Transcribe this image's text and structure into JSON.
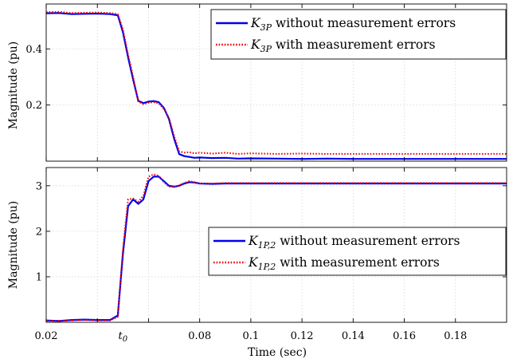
{
  "chart_data": [
    {
      "type": "line",
      "id": "top",
      "ylabel": "Magnitude (pu)",
      "xlim": [
        0.02,
        0.2
      ],
      "ylim": [
        0.0,
        0.56
      ],
      "yticks": [
        0.2,
        0.4
      ],
      "ytick_labels": [
        "0.2",
        "0.4"
      ],
      "grid": true,
      "legend_position": "top-right",
      "series": [
        {
          "name": "K_3P without measurement errors",
          "legend_main": "K",
          "legend_sub": "3P",
          "legend_text": " without measurement errors",
          "color": "#0000ee",
          "style": "solid",
          "x": [
            0.02,
            0.025,
            0.03,
            0.035,
            0.04,
            0.045,
            0.048,
            0.05,
            0.052,
            0.054,
            0.056,
            0.058,
            0.06,
            0.062,
            0.064,
            0.066,
            0.068,
            0.07,
            0.072,
            0.074,
            0.076,
            0.078,
            0.08,
            0.085,
            0.09,
            0.095,
            0.1,
            0.11,
            0.12,
            0.13,
            0.14,
            0.15,
            0.16,
            0.17,
            0.18,
            0.19,
            0.2
          ],
          "y": [
            0.527,
            0.528,
            0.524,
            0.525,
            0.526,
            0.524,
            0.52,
            0.46,
            0.37,
            0.29,
            0.215,
            0.207,
            0.212,
            0.214,
            0.21,
            0.19,
            0.15,
            0.08,
            0.025,
            0.018,
            0.015,
            0.012,
            0.013,
            0.011,
            0.012,
            0.009,
            0.01,
            0.009,
            0.008,
            0.009,
            0.008,
            0.008,
            0.008,
            0.008,
            0.008,
            0.008,
            0.008
          ]
        },
        {
          "name": "K_3P with measurement errors",
          "legend_main": "K",
          "legend_sub": "3P",
          "legend_text": " with measurement errors",
          "color": "#ee0000",
          "style": "dotted",
          "x": [
            0.02,
            0.025,
            0.03,
            0.035,
            0.04,
            0.045,
            0.048,
            0.05,
            0.052,
            0.054,
            0.056,
            0.058,
            0.06,
            0.062,
            0.064,
            0.066,
            0.068,
            0.07,
            0.072,
            0.074,
            0.076,
            0.078,
            0.08,
            0.085,
            0.09,
            0.095,
            0.1,
            0.11,
            0.12,
            0.13,
            0.14,
            0.15,
            0.16,
            0.17,
            0.18,
            0.19,
            0.2
          ],
          "y": [
            0.531,
            0.532,
            0.528,
            0.529,
            0.53,
            0.528,
            0.524,
            0.47,
            0.38,
            0.3,
            0.212,
            0.203,
            0.208,
            0.21,
            0.206,
            0.186,
            0.155,
            0.09,
            0.035,
            0.03,
            0.032,
            0.028,
            0.03,
            0.027,
            0.03,
            0.026,
            0.028,
            0.026,
            0.027,
            0.026,
            0.026,
            0.026,
            0.026,
            0.026,
            0.026,
            0.026,
            0.026
          ]
        }
      ]
    },
    {
      "type": "line",
      "id": "bottom",
      "ylabel": "Magnitude (pu)",
      "xlabel": "Time (sec)",
      "xlim": [
        0.02,
        0.2
      ],
      "ylim": [
        0.0,
        3.4
      ],
      "yticks": [
        1,
        2,
        3
      ],
      "ytick_labels": [
        "1",
        "2",
        "3"
      ],
      "xticks": [
        0.02,
        0.05,
        0.08,
        0.1,
        0.12,
        0.14,
        0.16,
        0.18
      ],
      "xtick_labels": [
        "0.02",
        "t0",
        "0.08",
        "0.1",
        "0.12",
        "0.14",
        "0.16",
        "0.18"
      ],
      "grid": true,
      "legend_position": "right",
      "series": [
        {
          "name": "K_1P,2 without measurement errors",
          "legend_main": "K",
          "legend_sub": "1P,2",
          "legend_text": " without measurement errors",
          "color": "#0000ee",
          "style": "solid",
          "x": [
            0.02,
            0.025,
            0.03,
            0.035,
            0.04,
            0.045,
            0.048,
            0.05,
            0.052,
            0.054,
            0.056,
            0.058,
            0.06,
            0.062,
            0.064,
            0.066,
            0.068,
            0.07,
            0.072,
            0.074,
            0.076,
            0.078,
            0.08,
            0.085,
            0.09,
            0.1,
            0.12,
            0.14,
            0.16,
            0.18,
            0.2
          ],
          "y": [
            0.04,
            0.03,
            0.05,
            0.06,
            0.05,
            0.05,
            0.15,
            1.5,
            2.55,
            2.7,
            2.6,
            2.7,
            3.1,
            3.2,
            3.2,
            3.1,
            3.0,
            2.98,
            3.0,
            3.05,
            3.08,
            3.07,
            3.05,
            3.04,
            3.05,
            3.05,
            3.05,
            3.05,
            3.05,
            3.05,
            3.05
          ]
        },
        {
          "name": "K_1P,2 with measurement errors",
          "legend_main": "K",
          "legend_sub": "1P,2",
          "legend_text": " with measurement errors",
          "color": "#ee0000",
          "style": "dotted",
          "x": [
            0.02,
            0.025,
            0.03,
            0.035,
            0.04,
            0.045,
            0.048,
            0.05,
            0.052,
            0.054,
            0.056,
            0.058,
            0.06,
            0.062,
            0.064,
            0.066,
            0.068,
            0.07,
            0.072,
            0.074,
            0.076,
            0.078,
            0.08,
            0.085,
            0.09,
            0.1,
            0.12,
            0.14,
            0.16,
            0.18,
            0.2
          ],
          "y": [
            0.03,
            0.03,
            0.04,
            0.05,
            0.04,
            0.04,
            0.12,
            1.6,
            2.7,
            2.72,
            2.65,
            2.78,
            3.2,
            3.25,
            3.22,
            3.08,
            2.98,
            2.97,
            3.01,
            3.06,
            3.1,
            3.08,
            3.05,
            3.05,
            3.06,
            3.06,
            3.06,
            3.06,
            3.06,
            3.06,
            3.06
          ]
        }
      ]
    }
  ]
}
